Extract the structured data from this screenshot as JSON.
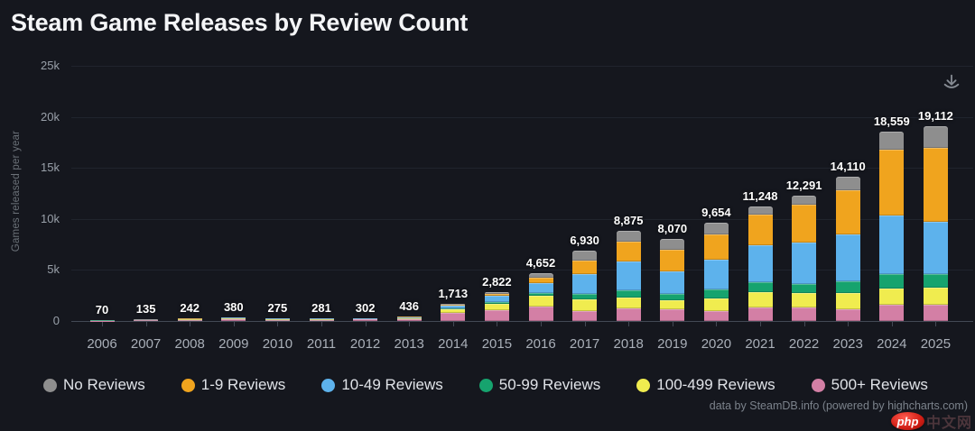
{
  "title": "Steam Game Releases by Review Count",
  "toolbar": {
    "download_icon": "download-icon"
  },
  "footer": {
    "credits": "data by SteamDB.info (powered by highcharts.com)",
    "watermark_logo": "php",
    "watermark_text": "中文网"
  },
  "chart_data": {
    "type": "bar",
    "stacked": true,
    "title": "Steam Game Releases by Review Count",
    "xlabel": "",
    "ylabel": "Games released per year",
    "ylim": [
      0,
      25000
    ],
    "grid": true,
    "legend_position": "bottom",
    "yticks": [
      {
        "v": 0,
        "label": "0"
      },
      {
        "v": 5000,
        "label": "5k"
      },
      {
        "v": 10000,
        "label": "10k"
      },
      {
        "v": 15000,
        "label": "15k"
      },
      {
        "v": 20000,
        "label": "20k"
      },
      {
        "v": 25000,
        "label": "25k"
      }
    ],
    "categories": [
      "2006",
      "2007",
      "2008",
      "2009",
      "2010",
      "2011",
      "2012",
      "2013",
      "2014",
      "2015",
      "2016",
      "2017",
      "2018",
      "2019",
      "2020",
      "2021",
      "2022",
      "2023",
      "2024",
      "2025"
    ],
    "totals": [
      70,
      135,
      242,
      380,
      275,
      281,
      302,
      436,
      1713,
      2822,
      4652,
      6930,
      8875,
      8070,
      9654,
      11248,
      12291,
      14110,
      18559,
      19112
    ],
    "totals_formatted": [
      "70",
      "135",
      "242",
      "380",
      "275",
      "281",
      "302",
      "436",
      "1,713",
      "2,822",
      "4,652",
      "6,930",
      "8,875",
      "8,070",
      "9,654",
      "11,248",
      "12,291",
      "14,110",
      "18,559",
      "19,112"
    ],
    "series_note": "per-segment values estimated from pixel heights; only stack totals are labeled in the chart",
    "series": [
      {
        "name": "500+ Reviews",
        "color": "#d37fa5",
        "values": [
          30,
          60,
          110,
          170,
          120,
          125,
          135,
          200,
          800,
          1100,
          1400,
          1000,
          1260,
          1120,
          1000,
          1300,
          1280,
          1120,
          1550,
          1550
        ]
      },
      {
        "name": "100-499 Reviews",
        "color": "#f0ec4f",
        "values": [
          14,
          25,
          45,
          70,
          55,
          55,
          60,
          80,
          380,
          580,
          1030,
          1100,
          1040,
          890,
          1250,
          1500,
          1490,
          1610,
          1610,
          1760
        ]
      },
      {
        "name": "50-99 Reviews",
        "color": "#16a36e",
        "values": [
          5,
          9,
          15,
          25,
          18,
          18,
          20,
          28,
          90,
          190,
          290,
          540,
          730,
          600,
          800,
          1000,
          890,
          1170,
          1400,
          1320
        ]
      },
      {
        "name": "10-49 Reviews",
        "color": "#5db2ec",
        "values": [
          11,
          21,
          35,
          60,
          45,
          45,
          50,
          70,
          250,
          600,
          1030,
          1960,
          2820,
          2250,
          3000,
          3600,
          4020,
          4550,
          5750,
          5130
        ]
      },
      {
        "name": "1-9 Reviews",
        "color": "#f0a41e",
        "values": [
          5,
          10,
          17,
          25,
          17,
          18,
          17,
          28,
          90,
          170,
          450,
          1360,
          1950,
          2090,
          2400,
          3000,
          3720,
          4400,
          6500,
          7200
        ]
      },
      {
        "name": "No Reviews",
        "color": "#8e8e8e",
        "values": [
          5,
          10,
          20,
          30,
          20,
          20,
          20,
          30,
          103,
          182,
          452,
          970,
          1075,
          1120,
          1204,
          848,
          891,
          1260,
          1749,
          2152
        ]
      }
    ],
    "legend": [
      {
        "label": "No Reviews",
        "color": "#8e8e8e"
      },
      {
        "label": "1-9 Reviews",
        "color": "#f0a41e"
      },
      {
        "label": "10-49 Reviews",
        "color": "#5db2ec"
      },
      {
        "label": "50-99 Reviews",
        "color": "#16a36e"
      },
      {
        "label": "100-499 Reviews",
        "color": "#f0ec4f"
      },
      {
        "label": "500+ Reviews",
        "color": "#d37fa5"
      }
    ],
    "colors": {
      "background": "#15171e",
      "gridline": "#20242d",
      "axis_line": "#434955",
      "axis_label": "#99a0a9",
      "category_label": "#a9afb8",
      "data_label": "#ffffff",
      "legend_text": "#e0e3e8",
      "title_text": "#f4f5f7"
    }
  }
}
